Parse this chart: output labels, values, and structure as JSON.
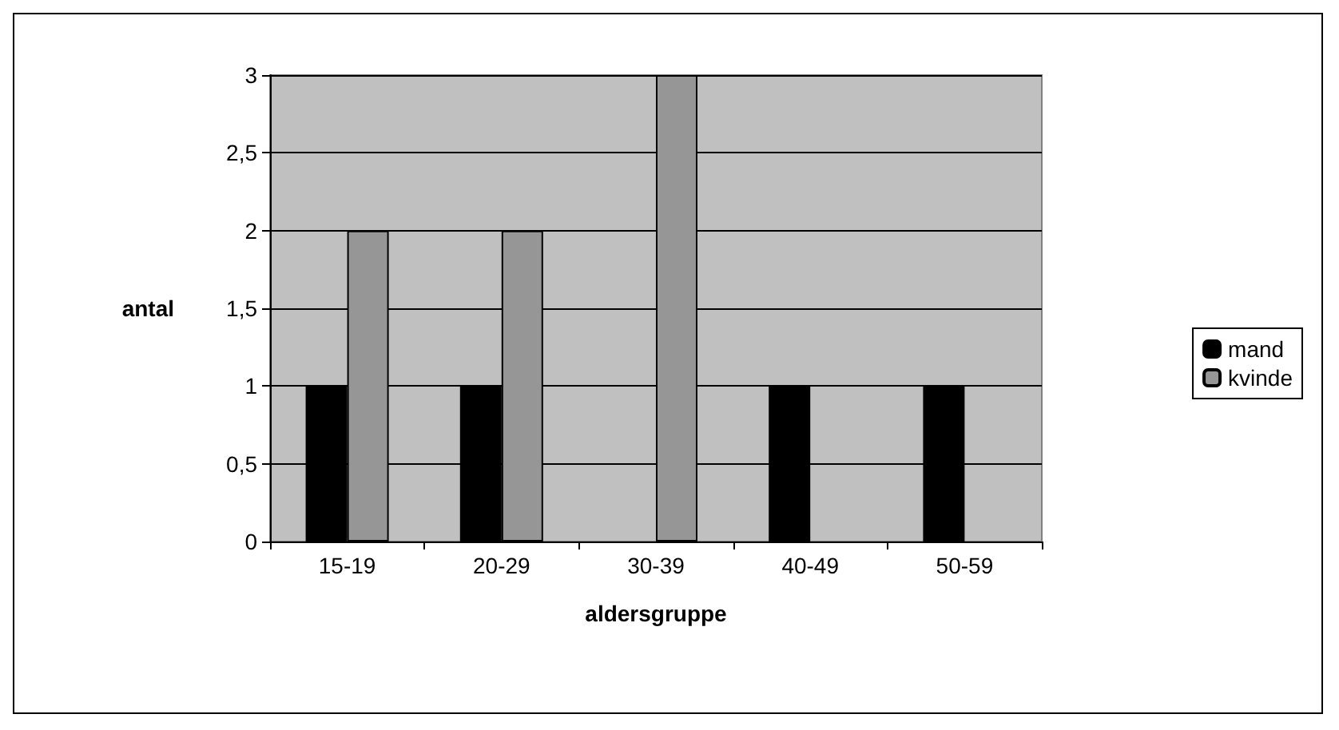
{
  "chart_data": {
    "type": "bar",
    "xlabel": "aldersgruppe",
    "ylabel": "antal",
    "categories": [
      "15-19",
      "20-29",
      "30-39",
      "40-49",
      "50-59"
    ],
    "series": [
      {
        "name": "mand",
        "color": "#000000",
        "values": [
          1,
          1,
          0,
          1,
          1
        ]
      },
      {
        "name": "kvinde",
        "color": "#969696",
        "values": [
          2,
          2,
          3,
          0,
          0
        ]
      }
    ],
    "ylim": [
      0,
      3
    ],
    "yticks": [
      0,
      {
        "value": 0.5,
        "label": "0,5"
      },
      1,
      {
        "value": 1.5,
        "label": "1,5"
      },
      2,
      {
        "value": 2.5,
        "label": "2,5"
      },
      3
    ],
    "grid": "y",
    "legend": "right"
  }
}
